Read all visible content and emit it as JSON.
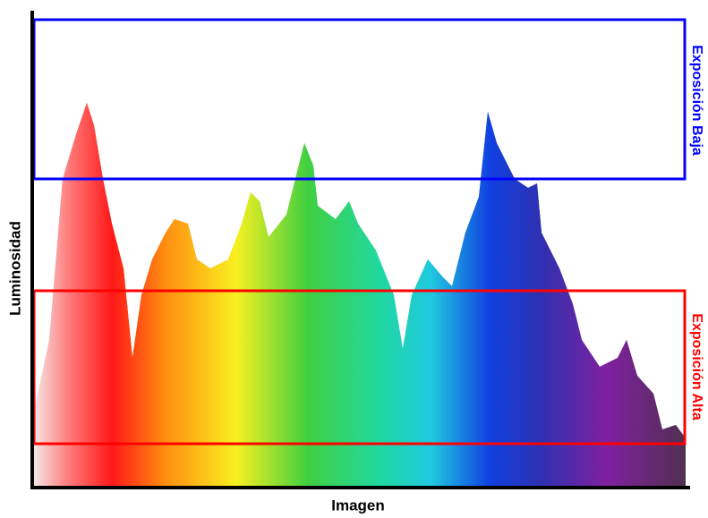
{
  "y_axis_label": "Luminosidad",
  "x_axis_label": "Imagen",
  "regions": [
    {
      "label": "Exposición Baja"
    },
    {
      "label": "Exposición Alta"
    }
  ]
}
